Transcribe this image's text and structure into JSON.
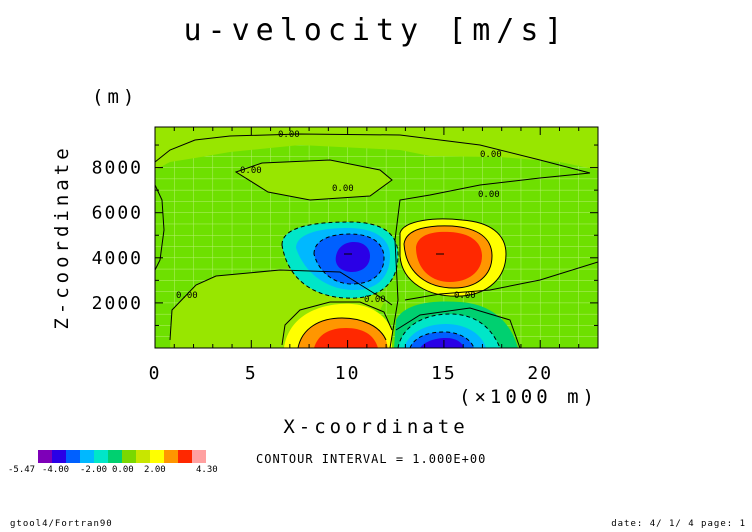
{
  "chart_data": {
    "type": "heatmap",
    "title": "u-velocity [m/s]",
    "xlabel": "X-coordinate",
    "ylabel": "Z-coordinate",
    "x_unit": "(×1000 m)",
    "y_unit": "(m)",
    "xlim": [
      0,
      23
    ],
    "ylim": [
      0,
      9800
    ],
    "x_ticks": [
      0,
      5,
      10,
      15,
      20
    ],
    "x_tick_labels": [
      "0",
      "5",
      "10",
      "15",
      "20"
    ],
    "y_ticks": [
      2000,
      4000,
      6000,
      8000
    ],
    "y_tick_labels": [
      "2000",
      "4000",
      "6000",
      "8000"
    ],
    "contour_label": "0.00",
    "contour_interval_text": "CONTOUR INTERVAL = 1.000E+00",
    "value_min": -5.47,
    "value_max": 4.3,
    "colorbar_labels": [
      "-5.47",
      "-4.00",
      "-2.00",
      "0.00",
      "2.00",
      "4.30"
    ],
    "colorbar_colors": [
      "#7e00b8",
      "#2a00e6",
      "#0060ff",
      "#00b8ff",
      "#00e6c8",
      "#00d070",
      "#7ad800",
      "#c8e600",
      "#ffff00",
      "#ff9600",
      "#ff2800",
      "#ffa0a0"
    ],
    "grid": true,
    "features": [
      {
        "x": 10.2,
        "z": 4300,
        "value": -3.4
      },
      {
        "x": 14.8,
        "z": 4300,
        "value": 3.9
      },
      {
        "x": 10.0,
        "z": 0,
        "value": 4.3
      },
      {
        "x": 14.5,
        "z": 0,
        "value": -5.47
      }
    ]
  },
  "footer": {
    "left": "gtool4/Fortran90",
    "right": "date: 4/ 1/ 4 page: 1"
  }
}
